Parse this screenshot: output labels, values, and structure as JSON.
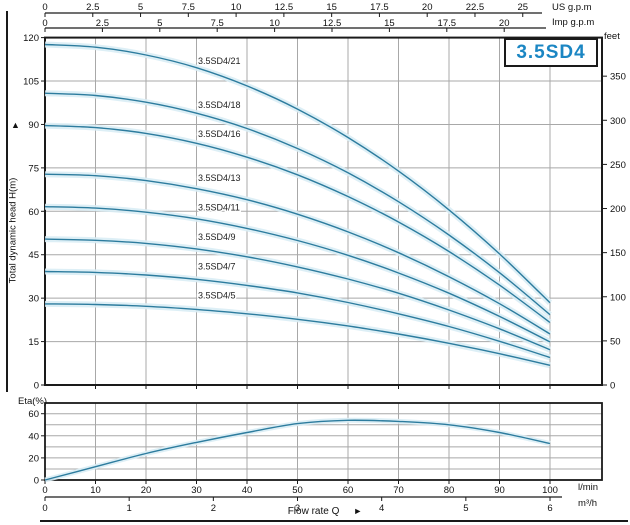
{
  "colors": {
    "curve": "#2d7c9e",
    "curve_halo": "#d9edf5",
    "grid": "#a8a8a8",
    "frame": "#1a1a1a",
    "title_blue": "#1b86c3"
  },
  "chart_data": [
    {
      "type": "line",
      "title": "3.5SD4",
      "ylabel": "Total dynamic head H(m)",
      "ylabel_arrow": "▲",
      "ylim": [
        0,
        120
      ],
      "y_ticks": [
        0,
        15,
        30,
        45,
        60,
        75,
        90,
        105,
        120
      ],
      "y2": {
        "label": "feet",
        "ticks": [
          0,
          50,
          100,
          150,
          200,
          250,
          300,
          350
        ]
      },
      "x_axes": {
        "us_gpm": {
          "label": "US g.p.m",
          "ticks": [
            0,
            2.5,
            5,
            7.5,
            10,
            12.5,
            15,
            17.5,
            20,
            22.5,
            25
          ]
        },
        "imp_gpm": {
          "label": "Imp g.p.m",
          "ticks": [
            0,
            2.5,
            5,
            7.5,
            10,
            12.5,
            15,
            17.5,
            20
          ]
        }
      },
      "x_lmin": [
        0,
        10,
        20,
        30,
        40,
        50,
        60,
        70,
        80,
        90,
        100
      ],
      "series": [
        {
          "name": "3.5SD4/21",
          "values": [
            117.6,
            116.7,
            114.0,
            109.6,
            103.3,
            95.3,
            85.5,
            73.9,
            60.5,
            45.3,
            28.4
          ]
        },
        {
          "name": "3.5SD4/18",
          "values": [
            100.8,
            100.0,
            97.7,
            93.9,
            88.6,
            81.7,
            73.3,
            63.3,
            51.8,
            38.8,
            24.3
          ]
        },
        {
          "name": "3.5SD4/16",
          "values": [
            89.6,
            88.9,
            86.9,
            83.5,
            78.7,
            72.6,
            65.1,
            56.3,
            46.1,
            34.5,
            21.6
          ]
        },
        {
          "name": "3.5SD4/13",
          "values": [
            72.8,
            72.3,
            70.6,
            67.8,
            64.0,
            59.0,
            52.9,
            45.7,
            37.4,
            28.1,
            17.6
          ]
        },
        {
          "name": "3.5SD4/11",
          "values": [
            61.6,
            61.1,
            59.7,
            57.4,
            54.1,
            49.9,
            44.8,
            38.7,
            31.7,
            23.7,
            14.9
          ]
        },
        {
          "name": "3.5SD4/9",
          "values": [
            50.4,
            50.0,
            48.9,
            47.0,
            44.3,
            40.8,
            36.6,
            31.7,
            25.9,
            19.4,
            12.2
          ]
        },
        {
          "name": "3.5SD4/7",
          "values": [
            39.2,
            38.9,
            38.0,
            36.5,
            34.4,
            31.8,
            28.5,
            24.6,
            20.2,
            15.1,
            9.5
          ]
        },
        {
          "name": "3.5SD4/5",
          "values": [
            28.0,
            27.8,
            27.2,
            26.1,
            24.6,
            22.7,
            20.4,
            17.6,
            14.4,
            10.8,
            6.8
          ]
        }
      ],
      "grid": true
    },
    {
      "type": "line",
      "name": "Eta",
      "ylabel": "Eta(%)",
      "ylim": [
        0,
        67
      ],
      "y_ticks": [
        0,
        20,
        40,
        60
      ],
      "y_grid_step": 10,
      "x_lmin": [
        0,
        10,
        20,
        30,
        40,
        50,
        60,
        70,
        80,
        90,
        100
      ],
      "values": [
        0,
        12,
        24,
        34,
        43,
        51,
        54,
        53,
        50,
        43,
        33
      ],
      "x_axes": {
        "lmin": {
          "label": "l/min",
          "ticks": [
            0,
            10,
            20,
            30,
            40,
            50,
            60,
            70,
            80,
            90,
            100
          ]
        },
        "m3h": {
          "label": "m³/h",
          "ticks": [
            0,
            1,
            2,
            3,
            4,
            5,
            6
          ]
        }
      },
      "xlabel": "Flow rate Q",
      "xlabel_arrow": "►",
      "grid": true
    }
  ]
}
